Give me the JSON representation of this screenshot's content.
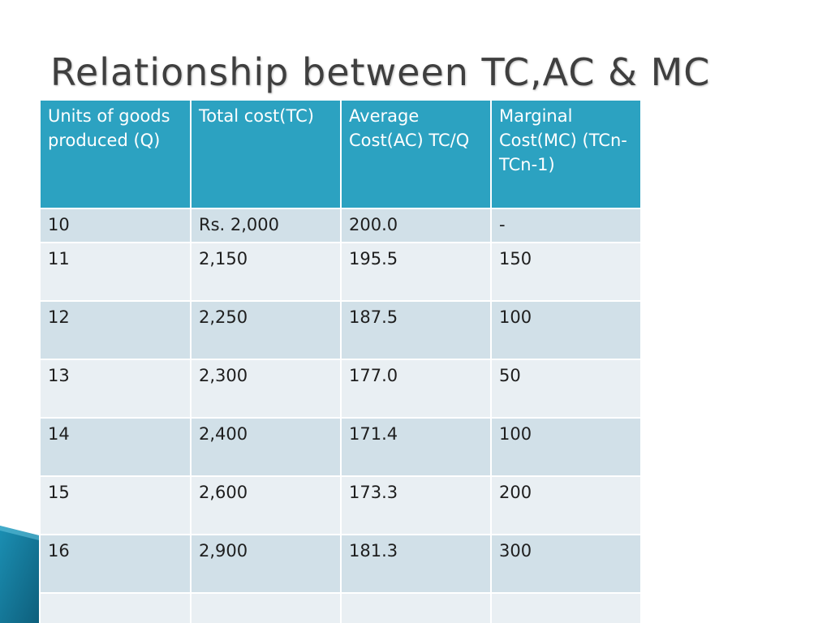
{
  "title": "Relationship between TC,AC & MC",
  "colors": {
    "header_bg": "#2ca2c1",
    "row_dark": "#d1e0e8",
    "row_light": "#e9eff3",
    "title_text": "#3f3f3f",
    "accent_deco": "#1b8fb3"
  },
  "table": {
    "headers": [
      "Units of goods produced (Q)",
      "Total cost(TC)",
      "Average Cost(AC) TC/Q",
      "Marginal Cost(MC) (TCn-TCn-1)"
    ],
    "rows": [
      [
        "10",
        "Rs. 2,000",
        "200.0",
        "-"
      ],
      [
        "11",
        "2,150",
        "195.5",
        "150"
      ],
      [
        "12",
        "2,250",
        "187.5",
        "100"
      ],
      [
        "13",
        "2,300",
        "177.0",
        "50"
      ],
      [
        "14",
        "2,400",
        "171.4",
        "100"
      ],
      [
        "15",
        "2,600",
        "173.3",
        "200"
      ],
      [
        "16",
        "2,900",
        "181.3",
        "300"
      ],
      [
        "",
        "",
        "",
        ""
      ]
    ]
  }
}
